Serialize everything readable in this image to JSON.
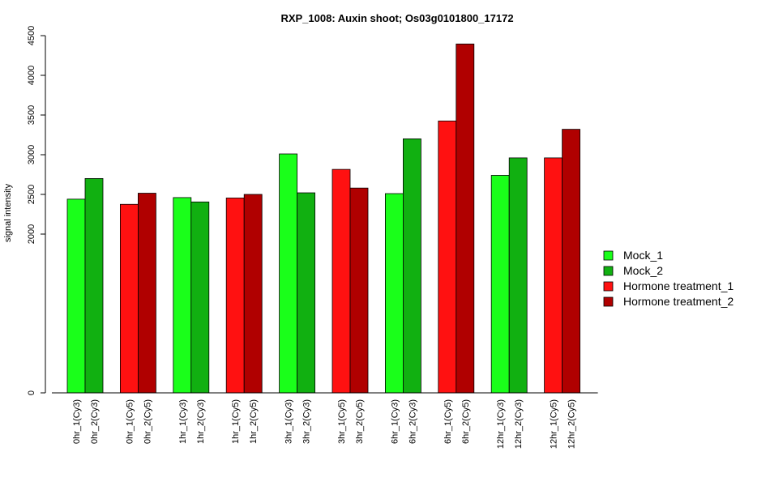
{
  "chart_data": {
    "type": "bar",
    "title": "RXP_1008: Auxin shoot; Os03g0101800_17172",
    "ylabel": "signal intensity",
    "xlabel": "",
    "ylim": [
      0,
      4500
    ],
    "yticks": [
      "0",
      "2000",
      "2500",
      "3000",
      "3500",
      "4000",
      "4500"
    ],
    "grid": false,
    "legend_position": "right",
    "legend": [
      {
        "name": "Mock_1",
        "color": "#1aff1a"
      },
      {
        "name": "Mock_2",
        "color": "#11b011"
      },
      {
        "name": "Hormone treatment_1",
        "color": "#ff1111"
      },
      {
        "name": "Hormone treatment_2",
        "color": "#b00000"
      }
    ],
    "bars": [
      {
        "category": "0hr_1(Cy3)",
        "value": 2440,
        "series": "Mock_1"
      },
      {
        "category": "0hr_2(Cy3)",
        "value": 2700,
        "series": "Mock_2"
      },
      {
        "category": "0hr_1(Cy5)",
        "value": 2375,
        "series": "Hormone treatment_1"
      },
      {
        "category": "0hr_2(Cy5)",
        "value": 2515,
        "series": "Hormone treatment_2"
      },
      {
        "category": "1hr_1(Cy3)",
        "value": 2460,
        "series": "Mock_1"
      },
      {
        "category": "1hr_2(Cy3)",
        "value": 2405,
        "series": "Mock_2"
      },
      {
        "category": "1hr_1(Cy5)",
        "value": 2455,
        "series": "Hormone treatment_1"
      },
      {
        "category": "1hr_2(Cy5)",
        "value": 2500,
        "series": "Hormone treatment_2"
      },
      {
        "category": "3hr_1(Cy3)",
        "value": 3010,
        "series": "Mock_1"
      },
      {
        "category": "3hr_2(Cy3)",
        "value": 2520,
        "series": "Mock_2"
      },
      {
        "category": "3hr_1(Cy5)",
        "value": 2815,
        "series": "Hormone treatment_1"
      },
      {
        "category": "3hr_2(Cy5)",
        "value": 2580,
        "series": "Hormone treatment_2"
      },
      {
        "category": "6hr_1(Cy3)",
        "value": 2510,
        "series": "Mock_1"
      },
      {
        "category": "6hr_2(Cy3)",
        "value": 3200,
        "series": "Mock_2"
      },
      {
        "category": "6hr_1(Cy5)",
        "value": 3425,
        "series": "Hormone treatment_1"
      },
      {
        "category": "6hr_2(Cy5)",
        "value": 4395,
        "series": "Hormone treatment_2"
      },
      {
        "category": "12hr_1(Cy3)",
        "value": 2740,
        "series": "Mock_1"
      },
      {
        "category": "12hr_2(Cy3)",
        "value": 2960,
        "series": "Mock_2"
      },
      {
        "category": "12hr_1(Cy5)",
        "value": 2960,
        "series": "Hormone treatment_1"
      },
      {
        "category": "12hr_2(Cy5)",
        "value": 3320,
        "series": "Hormone treatment_2"
      }
    ]
  }
}
